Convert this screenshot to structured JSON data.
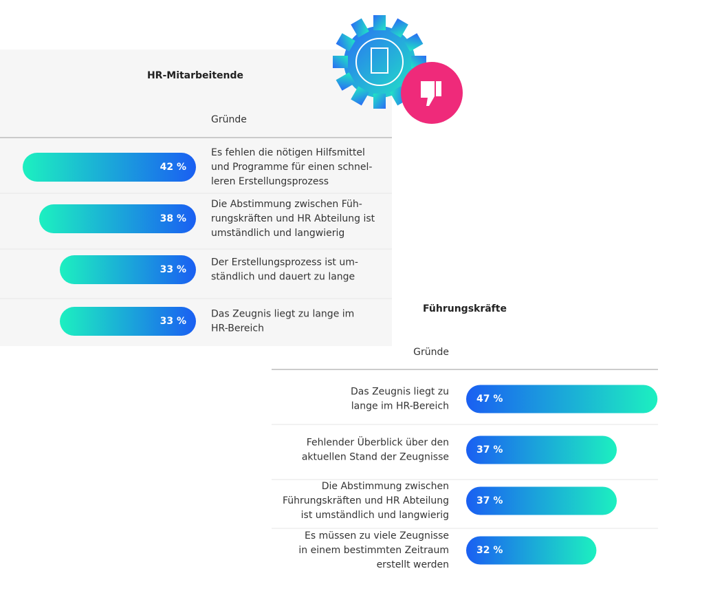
{
  "chart_data": [
    {
      "type": "hbar",
      "title": "HR-Mitarbeitende",
      "column_label": "Gründe",
      "categories": [
        [
          "Es fehlen die nötigen Hilfsmittel",
          "und Programme für einen schnel-",
          "leren Erstellungsprozess"
        ],
        [
          "Die Abstimmung zwischen Füh-",
          "rungskräften und HR Abteilung ist",
          "umständlich und langwierig"
        ],
        [
          "Der Erstellungsprozess ist um-",
          "ständlich und dauert zu lange"
        ],
        [
          "Das Zeugnis liegt zu lange im",
          "HR-Bereich"
        ]
      ],
      "values": [
        42,
        38,
        33,
        33
      ],
      "value_labels": [
        "42 %",
        "38 %",
        "33 %",
        "33 %"
      ],
      "colors": [
        "#1cf0c0",
        "#1a5ff2"
      ]
    },
    {
      "type": "hbar",
      "title": "Führungskräfte",
      "column_label": "Gründe",
      "categories": [
        [
          "Das Zeugnis liegt zu",
          "lange im HR-Bereich"
        ],
        [
          "Fehlender Überblick über den",
          "aktuellen Stand der Zeugnisse"
        ],
        [
          "Die Abstimmung zwischen",
          "Führungskräften und HR Abteilung",
          "ist umständlich und langwierig"
        ],
        [
          "Es müssen zu viele Zeugnisse",
          "in einem bestimmten Zeitraum",
          "erstellt werden"
        ]
      ],
      "values": [
        47,
        37,
        37,
        32
      ],
      "value_labels": [
        "47 %",
        "37 %",
        "37 %",
        "32 %"
      ],
      "colors": [
        "#1a5ff2",
        "#1cf0c0"
      ]
    }
  ]
}
